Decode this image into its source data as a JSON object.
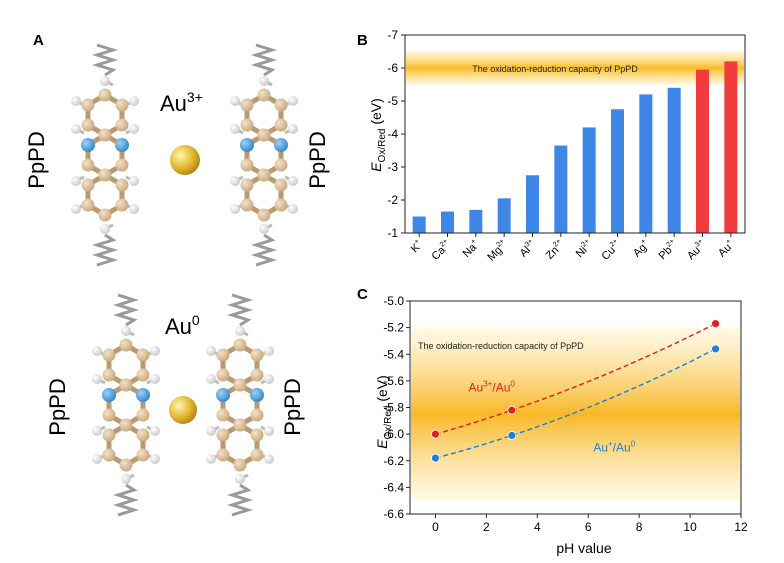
{
  "panels": {
    "a": {
      "letter": "A",
      "top_ion": "Au",
      "top_ion_sup": "3+",
      "bottom_ion": "Au",
      "bottom_ion_sup": "0",
      "polymer": "PpPD"
    },
    "b": {
      "letter": "B"
    },
    "c": {
      "letter": "C"
    }
  },
  "colors": {
    "carbon": "#d2b48c",
    "nitrogen": "#3a9ad9",
    "hydrogen": "#e6e6e6",
    "gold": "#e3b730",
    "chain": "#9a9a9a",
    "blue_bar": "#3f87e6",
    "red_bar": "#f03c3c",
    "band": "#fbc02d",
    "red_series": "#e02020",
    "blue_series": "#1e7fd8"
  },
  "chart_data": [
    {
      "type": "bar",
      "ylabel_main": "E",
      "ylabel_sub": "Ox/Red",
      "ylabel_unit": " (eV)",
      "ylim": [
        -1,
        -7
      ],
      "yticks": [
        "-1",
        "-2",
        "-3",
        "-4",
        "-5",
        "-6",
        "-7"
      ],
      "categories": [
        {
          "base": "K",
          "sup": "+"
        },
        {
          "base": "Ca",
          "sup": "2+"
        },
        {
          "base": "Na",
          "sup": "+"
        },
        {
          "base": "Mg",
          "sup": "2+"
        },
        {
          "base": "Al",
          "sup": "3+"
        },
        {
          "base": "Zn",
          "sup": "2+"
        },
        {
          "base": "Ni",
          "sup": "2+"
        },
        {
          "base": "Cu",
          "sup": "2+"
        },
        {
          "base": "Ag",
          "sup": "+"
        },
        {
          "base": "Pb",
          "sup": "2+"
        },
        {
          "base": "Au",
          "sup": "3+"
        },
        {
          "base": "Au",
          "sup": "+"
        }
      ],
      "values": [
        -1.5,
        -1.65,
        -1.7,
        -2.05,
        -2.75,
        -3.65,
        -4.2,
        -4.75,
        -5.2,
        -5.4,
        -5.95,
        -6.2
      ],
      "highlight": [
        false,
        false,
        false,
        false,
        false,
        false,
        false,
        false,
        false,
        false,
        true,
        true
      ],
      "band": {
        "from": -5.5,
        "to": -6.5,
        "label": "The oxidation-reduction capacity of PpPD"
      }
    },
    {
      "type": "scatter",
      "xlabel": "pH value",
      "ylabel_main": "E",
      "ylabel_sub": "Ox/Red",
      "ylabel_unit": " (eV)",
      "xlim": [
        -1,
        12
      ],
      "ylim": [
        -6.6,
        -5.0
      ],
      "xticks": [
        "0",
        "2",
        "4",
        "6",
        "8",
        "10",
        "12"
      ],
      "yticks": [
        "-6.6",
        "-6.4",
        "-6.2",
        "-6.0",
        "-5.8",
        "-5.6",
        "-5.4",
        "-5.2",
        "-5.0"
      ],
      "band": {
        "from": -6.5,
        "to": -5.2,
        "label": "The oxidation-reduction capacity of PpPD"
      },
      "series": [
        {
          "name_a": "Au",
          "sup_a": "3+",
          "name_b": "/Au",
          "sup_b": "0",
          "x": [
            0,
            3,
            11
          ],
          "y": [
            -6.0,
            -5.82,
            -5.17
          ]
        },
        {
          "name_a": "Au",
          "sup_a": "+",
          "name_b": "/Au",
          "sup_b": "0",
          "x": [
            0,
            3,
            11
          ],
          "y": [
            -6.18,
            -6.01,
            -5.36
          ]
        }
      ]
    }
  ]
}
